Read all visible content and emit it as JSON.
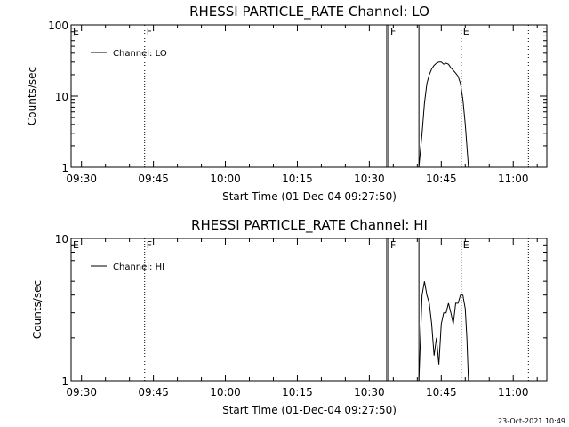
{
  "colors": {
    "background": "#ffffff",
    "foreground": "#000000"
  },
  "footer": {
    "timestamp": "23-Oct-2021 10:49"
  },
  "chart_data": [
    {
      "type": "line",
      "title": "RHESSI PARTICLE_RATE Channel: LO",
      "xlabel": "Start Time (01-Dec-04 09:27:50)",
      "ylabel": "Counts/sec",
      "yscale": "log",
      "ylim": [
        1,
        100
      ],
      "yticks": [
        1,
        10,
        100
      ],
      "ytick_labels": [
        "1",
        "10",
        "100"
      ],
      "xlim": [
        "09:27:50",
        "11:07:00"
      ],
      "xticks": [
        "09:30",
        "09:45",
        "10:00",
        "10:15",
        "10:30",
        "10:45",
        "11:00"
      ],
      "legend": {
        "position": "top-left",
        "entries": [
          "Channel: LO"
        ]
      },
      "events": [
        {
          "label": "E",
          "time": "09:27:50",
          "style": "none"
        },
        {
          "label": "F",
          "time": "09:43:10",
          "style": "dotted"
        },
        {
          "label": "F",
          "time": "10:34:00",
          "style": "solid"
        },
        {
          "label": "",
          "time": "10:40:20",
          "style": "solid"
        },
        {
          "label": "E",
          "time": "10:49:10",
          "style": "dotted"
        },
        {
          "label": "",
          "time": "11:03:10",
          "style": "dotted"
        }
      ],
      "series": [
        {
          "name": "Channel: LO",
          "x": [
            "10:40:20",
            "10:41:00",
            "10:41:30",
            "10:42:00",
            "10:42:30",
            "10:43:00",
            "10:43:30",
            "10:44:00",
            "10:44:30",
            "10:45:00",
            "10:45:30",
            "10:46:00",
            "10:46:30",
            "10:47:00",
            "10:47:30",
            "10:48:00",
            "10:48:30",
            "10:49:00",
            "10:49:30",
            "10:50:00",
            "10:50:20",
            "10:50:40"
          ],
          "y": [
            1,
            3,
            8,
            15,
            20,
            24,
            27,
            29,
            30,
            30,
            28,
            29,
            28,
            25,
            23,
            21,
            19,
            15,
            9,
            4,
            2,
            1
          ]
        }
      ]
    },
    {
      "type": "line",
      "title": "RHESSI PARTICLE_RATE Channel: HI",
      "xlabel": "Start Time (01-Dec-04 09:27:50)",
      "ylabel": "Counts/sec",
      "yscale": "log",
      "ylim": [
        1,
        10
      ],
      "yticks": [
        1,
        10
      ],
      "ytick_labels": [
        "1",
        "10"
      ],
      "xlim": [
        "09:27:50",
        "11:07:00"
      ],
      "xticks": [
        "09:30",
        "09:45",
        "10:00",
        "10:15",
        "10:30",
        "10:45",
        "11:00"
      ],
      "legend": {
        "position": "top-left",
        "entries": [
          "Channel: HI"
        ]
      },
      "events": [
        {
          "label": "E",
          "time": "09:27:50",
          "style": "none"
        },
        {
          "label": "F",
          "time": "09:43:10",
          "style": "dotted"
        },
        {
          "label": "F",
          "time": "10:34:00",
          "style": "solid"
        },
        {
          "label": "",
          "time": "10:40:20",
          "style": "solid"
        },
        {
          "label": "E",
          "time": "10:49:10",
          "style": "dotted"
        },
        {
          "label": "",
          "time": "11:03:10",
          "style": "dotted"
        }
      ],
      "series": [
        {
          "name": "Channel: HI",
          "x": [
            "10:40:20",
            "10:41:00",
            "10:41:30",
            "10:42:00",
            "10:42:30",
            "10:43:00",
            "10:43:30",
            "10:44:00",
            "10:44:30",
            "10:45:00",
            "10:45:30",
            "10:46:00",
            "10:46:30",
            "10:47:00",
            "10:47:30",
            "10:48:00",
            "10:48:30",
            "10:49:00",
            "10:49:30",
            "10:50:00",
            "10:50:20",
            "10:50:40"
          ],
          "y": [
            1,
            4,
            5,
            4,
            3.5,
            2.5,
            1.5,
            2,
            1.3,
            2.5,
            3,
            3,
            3.5,
            3,
            2.5,
            3.5,
            3.5,
            4,
            4,
            3.2,
            2,
            1
          ]
        }
      ]
    }
  ]
}
